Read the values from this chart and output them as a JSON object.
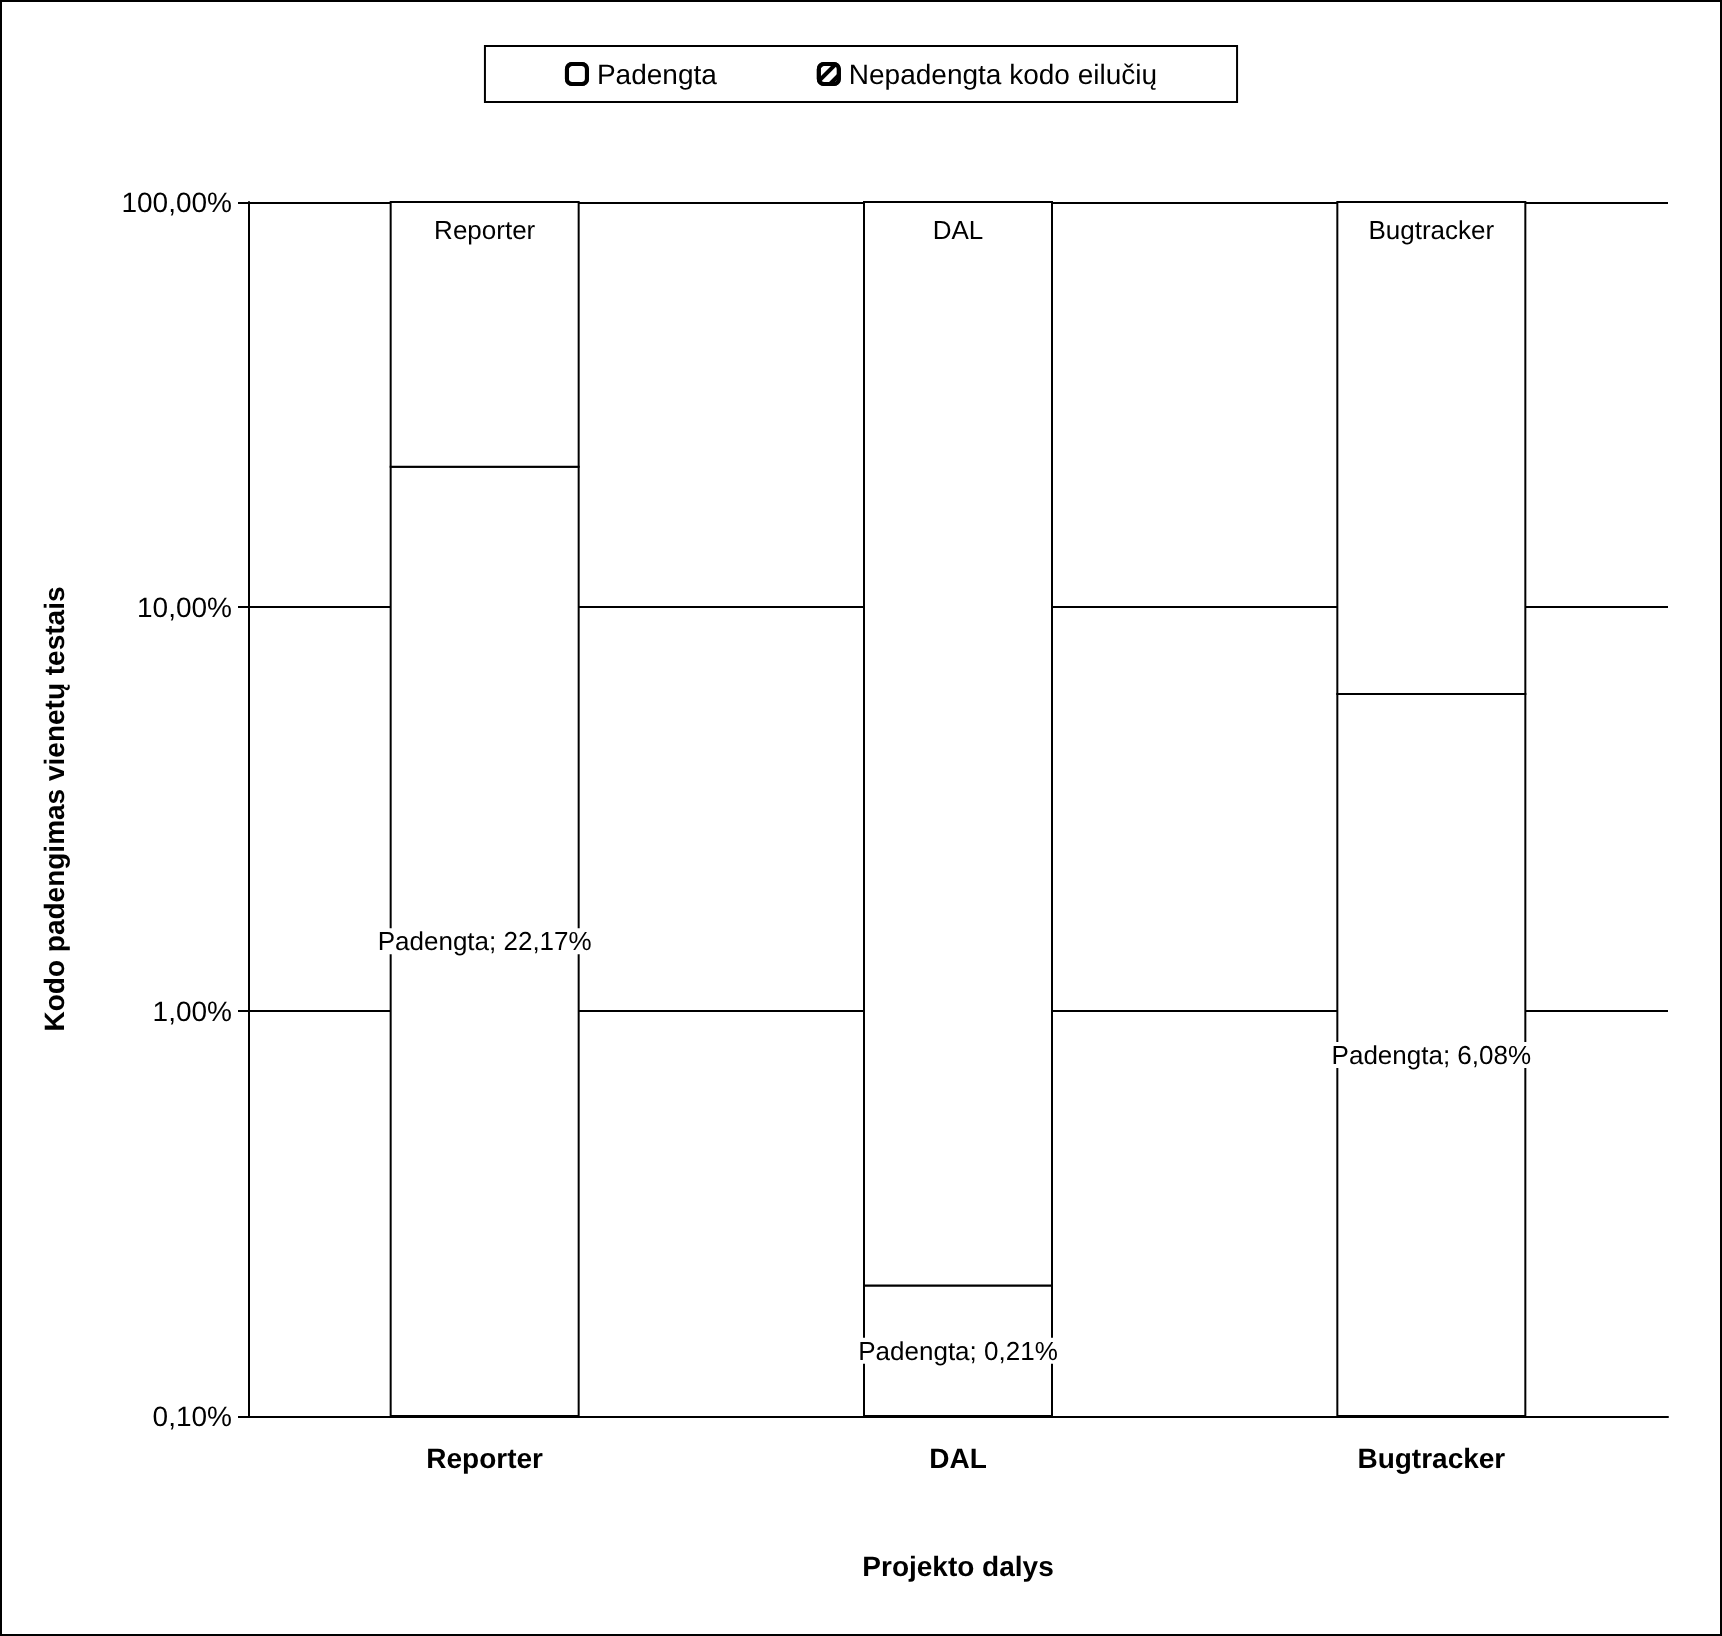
{
  "chart_data": {
    "type": "bar",
    "stacked": true,
    "log": "y",
    "xlabel": "Projekto dalys",
    "ylabel": "Kodo padengimas vienetų testais",
    "categories": [
      "Reporter",
      "DAL",
      "Bugtracker"
    ],
    "series": [
      {
        "name": "Padengta",
        "color": "#ffffff",
        "values": [
          22.17,
          0.21,
          6.08
        ],
        "value_labels": [
          "Padengta; 22,17%",
          "Padengta; 0,21%",
          "Padengta; 6,08%"
        ]
      },
      {
        "name": "Nepadengta kodo eilučių",
        "color": "#ffffff",
        "values": [
          77.83,
          99.79,
          93.92
        ],
        "value_labels": [
          "Reporter",
          "DAL",
          "Bugtracker"
        ]
      }
    ],
    "ylim": [
      0.1,
      100
    ],
    "yticks": [
      {
        "value": 0.1,
        "label": "0,10%"
      },
      {
        "value": 1,
        "label": "1,00%"
      },
      {
        "value": 10,
        "label": "10,00%"
      },
      {
        "value": 100,
        "label": "100,00%"
      }
    ],
    "grid": "y",
    "legend": "top"
  }
}
